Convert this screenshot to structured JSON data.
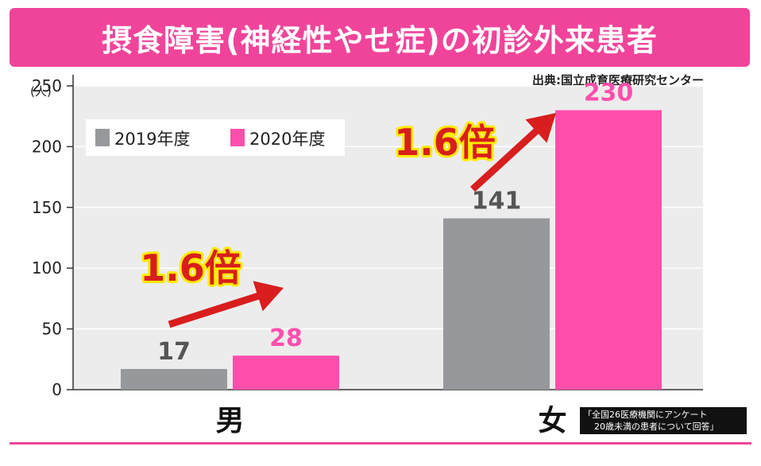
{
  "title": "摂食障害(神経性やせ症)の初診外来患者",
  "source": "出典:国立成育医療研究センター",
  "note": {
    "line1": "「全国26医療機関にアンケート",
    "line2": "20歳未満の患者について回答」"
  },
  "colors": {
    "series_2019": "#96989c",
    "series_2020": "#ff4fab",
    "title_bg": "#f0449a",
    "plot_bg": "#ececec",
    "arrow": "#d81e1e",
    "annotation_text": "#d81e1e",
    "annotation_outline": "#ffea00"
  },
  "chart_data": {
    "type": "bar",
    "categories": [
      "男",
      "女"
    ],
    "series": [
      {
        "name": "2019年度",
        "values": [
          17,
          141
        ]
      },
      {
        "name": "2020年度",
        "values": [
          28,
          230
        ]
      }
    ],
    "ylabel": "(人)",
    "ylim": [
      0,
      250
    ],
    "yticks": [
      0,
      50,
      100,
      150,
      200,
      250
    ],
    "legend": "top-left",
    "grid": true,
    "annotations": [
      "1.6倍",
      "1.6倍"
    ]
  }
}
